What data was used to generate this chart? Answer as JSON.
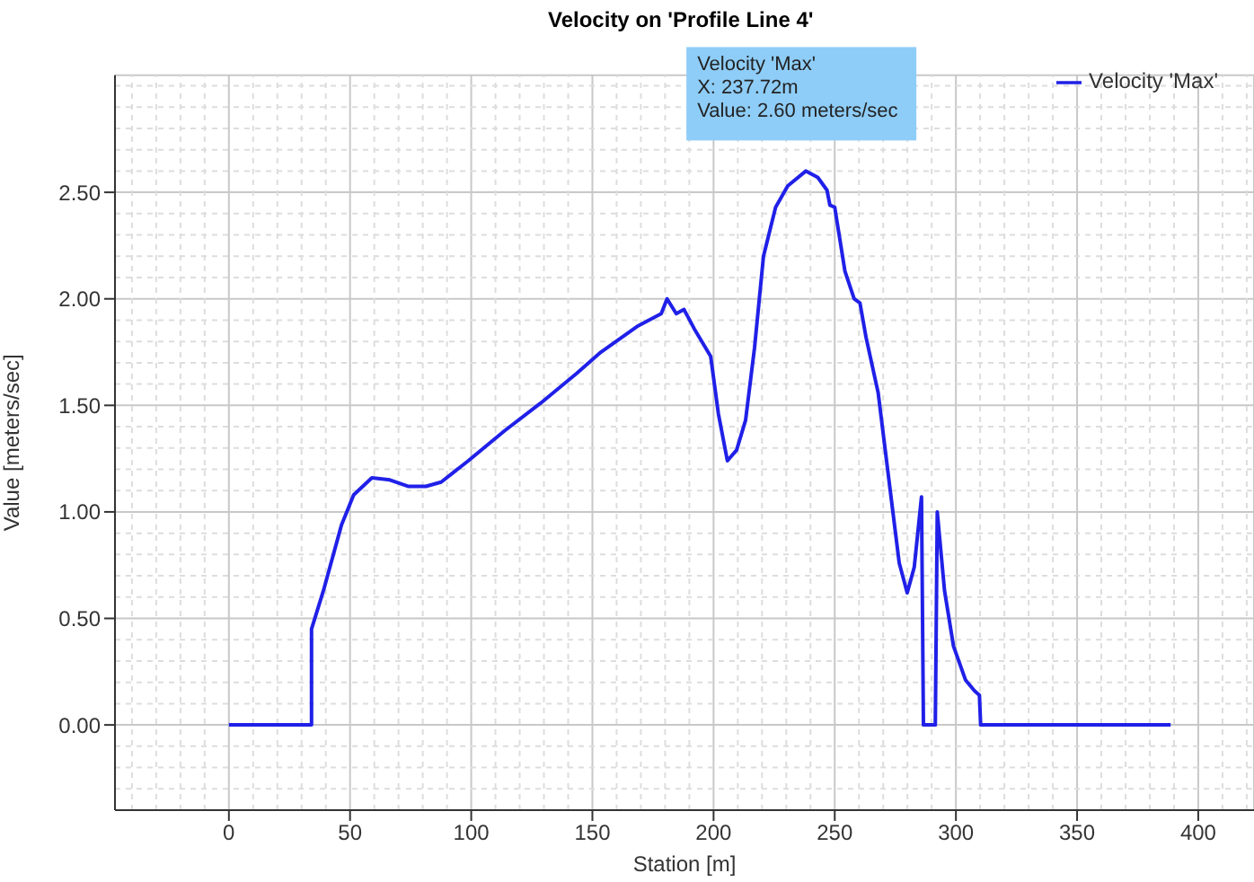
{
  "chart_data": {
    "type": "line",
    "title": "Velocity on 'Profile Line 4'",
    "xlabel": "Station [m]",
    "ylabel": "Value [meters/sec]",
    "xlim": [
      -47,
      423
    ],
    "ylim": [
      -0.4,
      3.05
    ],
    "xticks": [
      0,
      50,
      100,
      150,
      200,
      250,
      300,
      350,
      400
    ],
    "yticks": [
      {
        "value": 0,
        "label": "0.00"
      },
      {
        "value": 0.5,
        "label": "0.50"
      },
      {
        "value": 1,
        "label": "1.00"
      },
      {
        "value": 1.5,
        "label": "1.50"
      },
      {
        "value": 2,
        "label": "2.00"
      },
      {
        "value": 2.5,
        "label": "2.50"
      }
    ],
    "grid": true,
    "legend": "top right",
    "marker": "none",
    "line_style": "solid",
    "annotations": [
      {
        "text": "Velocity 'Max'\nX:  237.72m\nValue: 2.60 meters/sec",
        "x": 237.72,
        "y": 2.6
      }
    ],
    "series": [
      {
        "name": "Velocity 'Max'",
        "color": "#2020e8",
        "x": [
          0,
          34.1,
          34.1,
          39,
          46.5,
          51.5,
          59,
          66.4,
          73.9,
          81.3,
          87.6,
          98.8,
          113.7,
          128.6,
          143.5,
          153.5,
          168.4,
          178.4,
          180.8,
          184.6,
          187.8,
          192,
          198.8,
          202,
          205.7,
          209.5,
          213.2,
          216.9,
          220.6,
          225.6,
          230.6,
          238.1,
          243,
          246.8,
          248,
          250,
          254.2,
          258,
          260.4,
          262.9,
          267.9,
          272.9,
          276.6,
          279.9,
          282.8,
          285.8,
          286.6,
          291.5,
          292.3,
          295.3,
          299,
          304,
          307.7,
          309.7,
          310.2,
          388.6
        ],
        "values": [
          0,
          0,
          0.45,
          0.63,
          0.94,
          1.08,
          1.16,
          1.15,
          1.12,
          1.12,
          1.14,
          1.24,
          1.38,
          1.51,
          1.65,
          1.75,
          1.87,
          1.93,
          2.0,
          1.93,
          1.95,
          1.86,
          1.73,
          1.46,
          1.24,
          1.29,
          1.43,
          1.77,
          2.2,
          2.43,
          2.53,
          2.6,
          2.57,
          2.51,
          2.44,
          2.43,
          2.13,
          2.0,
          1.98,
          1.82,
          1.56,
          1.1,
          0.76,
          0.62,
          0.74,
          1.07,
          0,
          0,
          1.0,
          0.63,
          0.37,
          0.21,
          0.16,
          0.14,
          0,
          0
        ]
      }
    ]
  }
}
